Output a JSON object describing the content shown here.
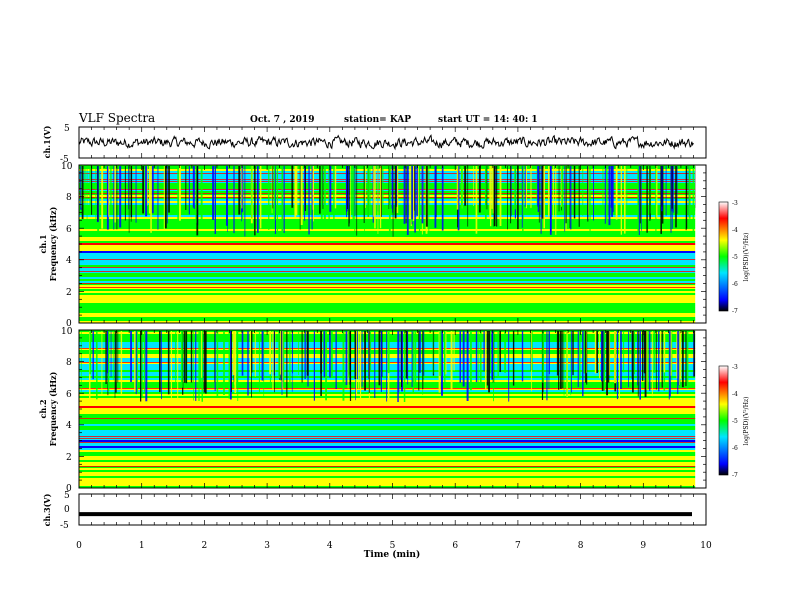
{
  "header": {
    "title": "VLF Spectra",
    "date": "Oct. 7 , 2019",
    "station": "station= KAP",
    "start": "start UT = 14: 40: 1"
  },
  "chart_data": [
    {
      "type": "line",
      "name": "ch1-waveform",
      "ylabel": "ch.1(V)",
      "ylim": [
        -5,
        5
      ],
      "yticks": [
        "5",
        "-5"
      ],
      "xlim": [
        0,
        10
      ]
    },
    {
      "type": "heatmap",
      "name": "ch1-spectrogram",
      "ylabel_line1": "ch.1",
      "ylabel_line2": "Frequency (kHz)",
      "ylim": [
        0,
        10
      ],
      "yticks": [
        "0",
        "2",
        "4",
        "6",
        "8",
        "10"
      ],
      "xlim": [
        0,
        9.83
      ],
      "colorbar": {
        "label": "log(PSD)(V²/Hz)",
        "range": [
          -7,
          -3
        ],
        "ticks": [
          "-3",
          "-4",
          "-5",
          "-6",
          "-7"
        ],
        "colors": [
          "#000000",
          "#0000ff",
          "#00e5ff",
          "#00ff00",
          "#ffff00",
          "#ff0000",
          "#ffffff"
        ]
      }
    },
    {
      "type": "heatmap",
      "name": "ch2-spectrogram",
      "ylabel_line1": "ch.2",
      "ylabel_line2": "Frequency (kHz)",
      "ylim": [
        0,
        10
      ],
      "yticks": [
        "0",
        "2",
        "4",
        "6",
        "8",
        "10"
      ],
      "xlim": [
        0,
        9.83
      ],
      "colorbar": {
        "label": "log(PSD)(V²/Hz)",
        "range": [
          -7,
          -3
        ],
        "ticks": [
          "-3",
          "-4",
          "-5",
          "-6",
          "-7"
        ],
        "colors": [
          "#000000",
          "#0000ff",
          "#00e5ff",
          "#00ff00",
          "#ffff00",
          "#ff0000",
          "#ffffff"
        ]
      }
    },
    {
      "type": "line",
      "name": "ch3-waveform",
      "ylabel": "ch.3(V)",
      "ylim": [
        -5,
        5
      ],
      "yticks": [
        "5",
        "0",
        "-5"
      ],
      "values_constant": -1.5,
      "xlabel": "Time (min)",
      "xlim": [
        0,
        10
      ],
      "xticks": [
        "0",
        "1",
        "2",
        "3",
        "4",
        "5",
        "6",
        "7",
        "8",
        "9",
        "10"
      ]
    }
  ]
}
